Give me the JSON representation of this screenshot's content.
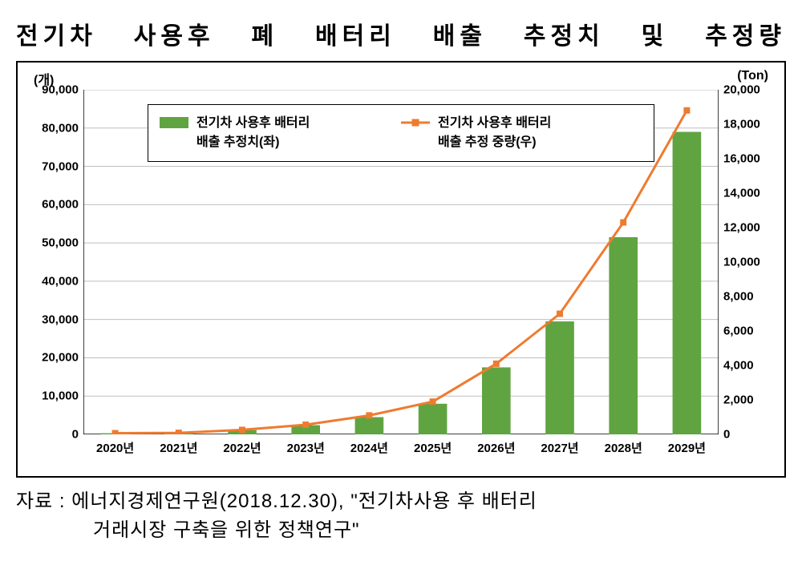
{
  "title": "전기차 사용후 폐 배터리 배출 추정치 및 추정량",
  "chart": {
    "type": "bar+line",
    "y_left_label": "(개)",
    "y_right_label": "(Ton)",
    "y_left": {
      "min": 0,
      "max": 90000,
      "step": 10000,
      "ticks": [
        "0",
        "10,000",
        "20,000",
        "30,000",
        "40,000",
        "50,000",
        "60,000",
        "70,000",
        "80,000",
        "90,000"
      ]
    },
    "y_right": {
      "min": 0,
      "max": 20000,
      "step": 2000,
      "ticks": [
        "0",
        "2,000",
        "4,000",
        "6,000",
        "8,000",
        "10,000",
        "12,000",
        "14,000",
        "16,000",
        "18,000",
        "20,000"
      ]
    },
    "categories": [
      "2020년",
      "2021년",
      "2022년",
      "2023년",
      "2024년",
      "2025년",
      "2026년",
      "2027년",
      "2028년",
      "2029년"
    ],
    "bar_series": {
      "legend_l1": "전기차 사용후 배터리",
      "legend_l2": "배출 추정치(좌)",
      "color": "#5fa441",
      "values": [
        300,
        400,
        1100,
        2400,
        4500,
        8000,
        17500,
        29500,
        51500,
        79000
      ]
    },
    "line_series": {
      "legend_l1": "전기차 사용후 배터리",
      "legend_l2": "배출 추정 중량(우)",
      "line_color": "#ee7b2f",
      "marker_color": "#ee7b2f",
      "marker_size": 8,
      "line_width": 3,
      "values": [
        70,
        90,
        260,
        560,
        1100,
        1900,
        4100,
        7000,
        12300,
        18800
      ]
    },
    "grid_color": "#bfbfbf",
    "axis_color": "#000000",
    "background": "#ffffff",
    "bar_width_ratio": 0.45,
    "label_fontsize": 15,
    "title_fontsize": 30
  },
  "source_line1": "자료 : 에너지경제연구원(2018.12.30), \"전기차사용 후 배터리",
  "source_line2": "거래시장 구축을 위한 정책연구\""
}
